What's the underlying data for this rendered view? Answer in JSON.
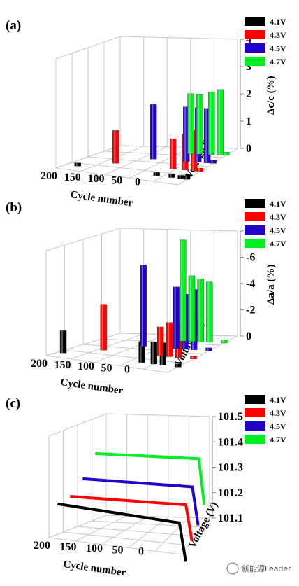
{
  "legend": [
    "4.1V",
    "4.3V",
    "4.5V",
    "4.7V"
  ],
  "colors": {
    "4.1V": "#000000",
    "4.3V": "#ff0000",
    "4.5V": "#2200cc",
    "4.7V": "#00ee22"
  },
  "watermark": "新能源Leader",
  "panels": [
    {
      "id": "a",
      "label": "(a)",
      "zlabel": "Δc/c (%)",
      "xlabel": "Cycle number",
      "ylabel": "Voltage (V)",
      "xticks": [
        "200",
        "150",
        "100",
        "50",
        "0"
      ],
      "zticks": [
        "4",
        "3",
        "2",
        "1",
        "0"
      ]
    },
    {
      "id": "b",
      "label": "(b)",
      "zlabel": "Δa/a (%)",
      "xlabel": "Cycle number",
      "ylabel": "Voltage (V)",
      "xticks": [
        "200",
        "150",
        "100",
        "50",
        "0"
      ],
      "zticks": [
        "-8",
        "-6",
        "-4",
        "-2",
        "0"
      ]
    },
    {
      "id": "c",
      "label": "(c)",
      "zlabel": "",
      "xlabel": "Cycle number",
      "ylabel": "Voltage (V)",
      "xticks": [
        "200",
        "150",
        "100",
        "50",
        "0"
      ],
      "zticks": [
        "101.5",
        "101.4",
        "101.3",
        "101.2",
        "101.1"
      ]
    }
  ],
  "chart_data": [
    {
      "type": "bar",
      "title": "(a)",
      "xlabel": "Cycle number",
      "ylabel": "Voltage (V)",
      "zlabel": "Δc/c (%)",
      "zlim": [
        0,
        4
      ],
      "series": [
        {
          "name": "4.1V",
          "points": [
            {
              "cycle": 180,
              "value": 0.1
            },
            {
              "cycle": 50,
              "value": 0.1
            },
            {
              "cycle": 25,
              "value": 0.1
            },
            {
              "cycle": 10,
              "value": 0.1
            },
            {
              "cycle": 0,
              "value": 0.05
            }
          ]
        },
        {
          "name": "4.3V",
          "points": [
            {
              "cycle": 140,
              "value": 1.2
            },
            {
              "cycle": 45,
              "value": 1.1
            },
            {
              "cycle": 25,
              "value": 1.3
            },
            {
              "cycle": 10,
              "value": 1.5
            },
            {
              "cycle": 0,
              "value": 0.1
            }
          ]
        },
        {
          "name": "4.5V",
          "points": [
            {
              "cycle": 100,
              "value": 2.0
            },
            {
              "cycle": 45,
              "value": 2.0
            },
            {
              "cycle": 25,
              "value": 2.0
            },
            {
              "cycle": 10,
              "value": 2.0
            },
            {
              "cycle": 0,
              "value": 0.1
            }
          ]
        },
        {
          "name": "4.7V",
          "points": [
            {
              "cycle": 60,
              "value": 2.2
            },
            {
              "cycle": 45,
              "value": 2.2
            },
            {
              "cycle": 25,
              "value": 2.3
            },
            {
              "cycle": 10,
              "value": 2.4
            },
            {
              "cycle": 0,
              "value": 0.1
            }
          ]
        }
      ]
    },
    {
      "type": "bar",
      "title": "(b)",
      "xlabel": "Cycle number",
      "ylabel": "Voltage (V)",
      "zlabel": "Δa/a (%)",
      "zlim": [
        0,
        -8
      ],
      "series": [
        {
          "name": "4.1V",
          "points": [
            {
              "cycle": 190,
              "value": -1.7
            },
            {
              "cycle": 60,
              "value": -1.6
            },
            {
              "cycle": 40,
              "value": -1.7
            },
            {
              "cycle": 25,
              "value": -1.7
            },
            {
              "cycle": 0,
              "value": -0.1
            }
          ]
        },
        {
          "name": "4.3V",
          "points": [
            {
              "cycle": 150,
              "value": -3.5
            },
            {
              "cycle": 55,
              "value": -2.2
            },
            {
              "cycle": 40,
              "value": -2.6
            },
            {
              "cycle": 25,
              "value": -2.6
            },
            {
              "cycle": 0,
              "value": -0.1
            }
          ]
        },
        {
          "name": "4.5V",
          "points": [
            {
              "cycle": 110,
              "value": -6.2
            },
            {
              "cycle": 55,
              "value": -4.7
            },
            {
              "cycle": 40,
              "value": -4.2
            },
            {
              "cycle": 25,
              "value": -4.6
            },
            {
              "cycle": 0,
              "value": -0.1
            }
          ]
        },
        {
          "name": "4.7V",
          "points": [
            {
              "cycle": 70,
              "value": -7.7
            },
            {
              "cycle": 55,
              "value": -5.0
            },
            {
              "cycle": 40,
              "value": -4.8
            },
            {
              "cycle": 25,
              "value": -4.6
            },
            {
              "cycle": 0,
              "value": -0.1
            }
          ]
        }
      ]
    },
    {
      "type": "line",
      "title": "(c)",
      "xlabel": "Cycle number",
      "ylabel": "Voltage (V)",
      "zlim": [
        101.1,
        101.5
      ],
      "series": [
        {
          "name": "4.1V",
          "points": [
            {
              "cycle": 200,
              "value": 101.22
            },
            {
              "cycle": 10,
              "value": 101.2
            },
            {
              "cycle": 0,
              "value": 101.05
            }
          ]
        },
        {
          "name": "4.3V",
          "points": [
            {
              "cycle": 200,
              "value": 101.23
            },
            {
              "cycle": 10,
              "value": 101.24
            },
            {
              "cycle": 0,
              "value": 101.1
            }
          ]
        },
        {
          "name": "4.5V",
          "points": [
            {
              "cycle": 200,
              "value": 101.28
            },
            {
              "cycle": 10,
              "value": 101.28
            },
            {
              "cycle": 0,
              "value": 101.13
            }
          ]
        },
        {
          "name": "4.7V",
          "points": [
            {
              "cycle": 200,
              "value": 101.36
            },
            {
              "cycle": 10,
              "value": 101.36
            },
            {
              "cycle": 0,
              "value": 101.18
            }
          ]
        }
      ]
    }
  ]
}
